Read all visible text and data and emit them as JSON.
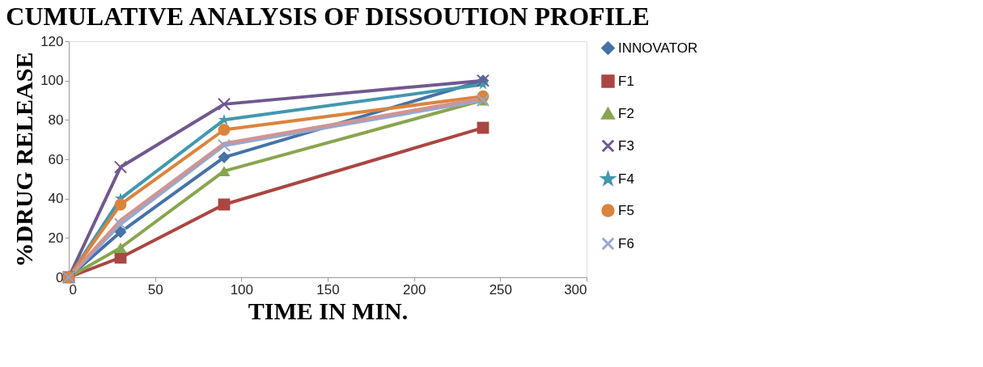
{
  "chart_data": {
    "type": "line",
    "title": "CUMULATIVE ANALYSIS OF DISSOUTION PROFILE",
    "xlabel": "TIME IN MIN.",
    "ylabel": "%DRUG RELEASE",
    "x": [
      0,
      30,
      90,
      240
    ],
    "series": [
      {
        "name": "INNOVATOR",
        "color": "#4572a7",
        "marker": "diamond",
        "values": [
          0,
          23,
          61,
          100
        ]
      },
      {
        "name": "F1",
        "color": "#aa4643",
        "marker": "square",
        "values": [
          0,
          10,
          37,
          76
        ]
      },
      {
        "name": "F2",
        "color": "#89a54e",
        "marker": "triangle",
        "values": [
          0,
          15,
          54,
          90
        ]
      },
      {
        "name": "F3",
        "color": "#71588f",
        "marker": "cross",
        "values": [
          0,
          56,
          88,
          100
        ]
      },
      {
        "name": "F4",
        "color": "#4198af",
        "marker": "star",
        "values": [
          0,
          40,
          80,
          98
        ]
      },
      {
        "name": "F5",
        "color": "#db843d",
        "marker": "circle",
        "values": [
          0,
          37,
          75,
          92
        ]
      },
      {
        "name": "F6",
        "color": "#93a9cf",
        "marker": "cross",
        "values": [
          0,
          27,
          67,
          90
        ]
      },
      {
        "color": "#d19392",
        "marker": "none",
        "values": [
          0,
          29,
          68,
          91
        ]
      }
    ],
    "xlim": [
      0,
      300
    ],
    "xticks": [
      0,
      50,
      100,
      150,
      200,
      250,
      300
    ],
    "ylim": [
      0,
      120
    ],
    "yticks": [
      0,
      20,
      40,
      60,
      80,
      100,
      120
    ],
    "grid": false,
    "legend": "right"
  }
}
